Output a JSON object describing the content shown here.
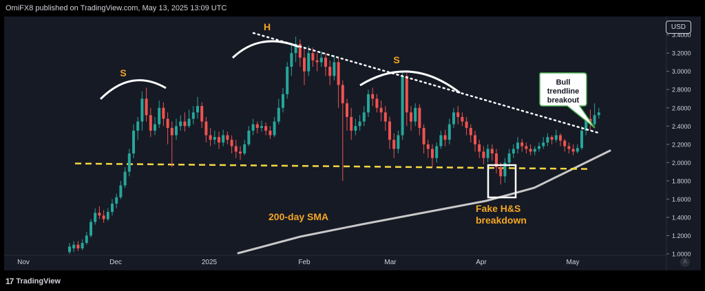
{
  "header": {
    "publisher": "OmiFX8 published on TradingView.com, May 13, 2025 13:09 UTC"
  },
  "footer": {
    "brand": "TradingView",
    "brand_mark": "17"
  },
  "axis": {
    "currency_button": "USD",
    "auto_button": "A"
  },
  "chart_data": {
    "type": "candlestick",
    "ylim": [
      1.0,
      3.45
    ],
    "yticks": [
      "3.4000",
      "3.2000",
      "3.0000",
      "2.8000",
      "2.6000",
      "2.4000",
      "2.2000",
      "2.0000",
      "1.8000",
      "1.6000",
      "1.4000",
      "1.2000",
      "1.0000"
    ],
    "xticks": [
      "Nov",
      "Dec",
      "2025",
      "Feb",
      "Mar",
      "Apr",
      "May"
    ],
    "colors": {
      "up": "#26a69a",
      "down": "#ef5350",
      "sma": "#c8c8c8",
      "neckline": "#f5d742",
      "trend": "#ffffff",
      "label": "#f5a623",
      "bg": "#161a25"
    },
    "candles": [
      [
        1.02,
        1.08,
        1.12,
        1.0
      ],
      [
        1.06,
        1.1,
        1.14,
        1.02
      ],
      [
        1.1,
        1.06,
        1.14,
        1.03
      ],
      [
        1.06,
        1.12,
        1.16,
        1.04
      ],
      [
        1.12,
        1.2,
        1.24,
        1.1
      ],
      [
        1.2,
        1.35,
        1.38,
        1.18
      ],
      [
        1.35,
        1.45,
        1.5,
        1.32
      ],
      [
        1.45,
        1.42,
        1.52,
        1.38
      ],
      [
        1.42,
        1.38,
        1.48,
        1.34
      ],
      [
        1.38,
        1.46,
        1.5,
        1.36
      ],
      [
        1.46,
        1.55,
        1.6,
        1.42
      ],
      [
        1.55,
        1.62,
        1.66,
        1.5
      ],
      [
        1.62,
        1.75,
        1.8,
        1.6
      ],
      [
        1.75,
        1.9,
        1.95,
        1.72
      ],
      [
        1.9,
        2.1,
        2.15,
        1.85
      ],
      [
        2.1,
        2.35,
        2.42,
        2.05
      ],
      [
        2.35,
        2.45,
        2.5,
        2.25
      ],
      [
        2.45,
        2.7,
        2.78,
        2.35
      ],
      [
        2.7,
        2.52,
        2.82,
        2.45
      ],
      [
        2.52,
        2.35,
        2.6,
        2.28
      ],
      [
        2.35,
        2.42,
        2.5,
        2.3
      ],
      [
        2.42,
        2.6,
        2.68,
        2.38
      ],
      [
        2.6,
        2.48,
        2.66,
        2.4
      ],
      [
        2.48,
        2.38,
        2.55,
        2.2
      ],
      [
        2.38,
        2.3,
        2.45,
        1.95
      ],
      [
        2.3,
        2.4,
        2.48,
        2.25
      ],
      [
        2.4,
        2.45,
        2.52,
        2.35
      ],
      [
        2.45,
        2.4,
        2.55,
        2.34
      ],
      [
        2.4,
        2.48,
        2.58,
        2.38
      ],
      [
        2.48,
        2.55,
        2.62,
        2.42
      ],
      [
        2.55,
        2.62,
        2.72,
        2.48
      ],
      [
        2.62,
        2.45,
        2.66,
        2.38
      ],
      [
        2.45,
        2.3,
        2.5,
        2.22
      ],
      [
        2.3,
        2.25,
        2.38,
        2.18
      ],
      [
        2.25,
        2.28,
        2.35,
        2.2
      ],
      [
        2.28,
        2.22,
        2.34,
        2.15
      ],
      [
        2.22,
        2.3,
        2.36,
        2.18
      ],
      [
        2.3,
        2.25,
        2.34,
        2.2
      ],
      [
        2.25,
        2.18,
        2.3,
        2.1
      ],
      [
        2.18,
        2.12,
        2.25,
        2.05
      ],
      [
        2.12,
        2.1,
        2.18,
        2.03
      ],
      [
        2.1,
        2.2,
        2.25,
        2.08
      ],
      [
        2.2,
        2.35,
        2.4,
        2.18
      ],
      [
        2.35,
        2.42,
        2.48,
        2.3
      ],
      [
        2.42,
        2.38,
        2.45,
        2.32
      ],
      [
        2.38,
        2.4,
        2.46,
        2.34
      ],
      [
        2.4,
        2.35,
        2.44,
        2.3
      ],
      [
        2.35,
        2.3,
        2.4,
        2.26
      ],
      [
        2.3,
        2.45,
        2.5,
        2.28
      ],
      [
        2.45,
        2.6,
        2.7,
        2.42
      ],
      [
        2.6,
        2.75,
        2.82,
        2.55
      ],
      [
        2.75,
        3.05,
        3.1,
        2.7
      ],
      [
        3.05,
        3.2,
        3.3,
        2.95
      ],
      [
        3.2,
        3.3,
        3.38,
        3.1
      ],
      [
        3.3,
        3.15,
        3.35,
        3.05
      ],
      [
        3.15,
        3.0,
        3.25,
        2.85
      ],
      [
        3.0,
        3.2,
        3.28,
        2.95
      ],
      [
        3.2,
        3.12,
        3.26,
        3.05
      ],
      [
        3.12,
        3.1,
        3.2,
        3.0
      ],
      [
        3.1,
        3.15,
        3.22,
        3.05
      ],
      [
        3.15,
        3.05,
        3.2,
        2.95
      ],
      [
        3.05,
        2.95,
        3.12,
        2.85
      ],
      [
        2.95,
        3.1,
        3.18,
        2.9
      ],
      [
        3.1,
        2.85,
        3.15,
        2.6
      ],
      [
        2.85,
        2.65,
        2.9,
        1.8
      ],
      [
        2.65,
        2.5,
        2.7,
        2.35
      ],
      [
        2.5,
        2.35,
        2.6,
        2.25
      ],
      [
        2.35,
        2.4,
        2.48,
        2.3
      ],
      [
        2.4,
        2.45,
        2.52,
        2.35
      ],
      [
        2.45,
        2.55,
        2.62,
        2.4
      ],
      [
        2.55,
        2.75,
        2.8,
        2.5
      ],
      [
        2.75,
        2.7,
        2.82,
        2.62
      ],
      [
        2.7,
        2.6,
        2.75,
        2.55
      ],
      [
        2.6,
        2.55,
        2.68,
        2.45
      ],
      [
        2.55,
        2.45,
        2.62,
        2.35
      ],
      [
        2.45,
        2.25,
        2.5,
        2.15
      ],
      [
        2.25,
        2.15,
        2.32,
        2.05
      ],
      [
        2.15,
        2.3,
        2.35,
        2.1
      ],
      [
        2.3,
        2.95,
        3.0,
        2.25
      ],
      [
        2.95,
        2.55,
        2.98,
        2.4
      ],
      [
        2.55,
        2.45,
        2.62,
        2.35
      ],
      [
        2.45,
        2.6,
        2.65,
        2.4
      ],
      [
        2.6,
        2.38,
        2.64,
        2.3
      ],
      [
        2.38,
        2.2,
        2.42,
        2.1
      ],
      [
        2.2,
        2.15,
        2.25,
        2.05
      ],
      [
        2.15,
        2.05,
        2.2,
        1.95
      ],
      [
        2.05,
        2.18,
        2.22,
        2.0
      ],
      [
        2.18,
        2.3,
        2.35,
        2.15
      ],
      [
        2.3,
        2.25,
        2.36,
        2.18
      ],
      [
        2.25,
        2.42,
        2.48,
        2.2
      ],
      [
        2.42,
        2.55,
        2.6,
        2.38
      ],
      [
        2.55,
        2.5,
        2.62,
        2.42
      ],
      [
        2.5,
        2.45,
        2.55,
        2.4
      ],
      [
        2.45,
        2.38,
        2.5,
        2.3
      ],
      [
        2.38,
        2.3,
        2.42,
        2.22
      ],
      [
        2.3,
        2.2,
        2.35,
        2.12
      ],
      [
        2.2,
        2.12,
        2.25,
        2.05
      ],
      [
        2.12,
        2.05,
        2.18,
        1.98
      ],
      [
        2.05,
        2.15,
        2.2,
        2.0
      ],
      [
        2.15,
        2.1,
        2.2,
        2.02
      ],
      [
        2.1,
        1.95,
        2.15,
        1.88
      ],
      [
        1.95,
        1.85,
        2.0,
        1.76
      ],
      [
        1.85,
        2.0,
        2.05,
        1.78
      ],
      [
        2.0,
        2.1,
        2.15,
        1.95
      ],
      [
        2.1,
        2.15,
        2.2,
        2.05
      ],
      [
        2.15,
        2.22,
        2.28,
        2.1
      ],
      [
        2.22,
        2.18,
        2.26,
        2.12
      ],
      [
        2.18,
        2.15,
        2.22,
        2.1
      ],
      [
        2.15,
        2.12,
        2.2,
        2.08
      ],
      [
        2.12,
        2.15,
        2.18,
        2.08
      ],
      [
        2.15,
        2.18,
        2.22,
        2.12
      ],
      [
        2.18,
        2.22,
        2.28,
        2.15
      ],
      [
        2.22,
        2.28,
        2.32,
        2.18
      ],
      [
        2.28,
        2.25,
        2.3,
        2.2
      ],
      [
        2.25,
        2.3,
        2.36,
        2.22
      ],
      [
        2.3,
        2.24,
        2.32,
        2.18
      ],
      [
        2.24,
        2.18,
        2.26,
        2.12
      ],
      [
        2.18,
        2.15,
        2.22,
        2.1
      ],
      [
        2.15,
        2.12,
        2.2,
        2.08
      ],
      [
        2.12,
        2.16,
        2.2,
        2.1
      ],
      [
        2.16,
        2.35,
        2.4,
        2.14
      ],
      [
        2.35,
        2.48,
        2.52,
        2.3
      ],
      [
        2.48,
        2.42,
        2.58,
        2.35
      ],
      [
        2.42,
        2.52,
        2.65,
        2.4
      ],
      [
        2.52,
        2.55,
        2.6,
        2.48
      ]
    ],
    "sma": [
      [
        24,
        0.98
      ],
      [
        44,
        1.2
      ],
      [
        64,
        1.45
      ],
      [
        84,
        1.68
      ],
      [
        104,
        1.85
      ],
      [
        124,
        2.0
      ],
      [
        129,
        2.15
      ]
    ],
    "neckline": [
      [
        0,
        1.99
      ],
      [
        125,
        1.93
      ]
    ],
    "trendline": [
      [
        52,
        3.4
      ],
      [
        125,
        2.32
      ]
    ],
    "annotations": {
      "shoulder_left": "S",
      "head": "H",
      "shoulder_right": "S",
      "sma_label": "200-day SMA",
      "breakdown_label_1": "Fake H&S",
      "breakdown_label_2": "breakdown",
      "callout_1": "Bull",
      "callout_2": "trendline",
      "callout_3": "breakout"
    }
  }
}
